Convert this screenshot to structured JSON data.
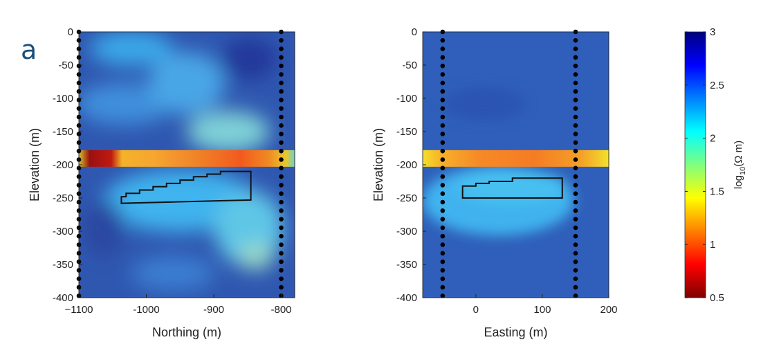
{
  "panel_label": "a",
  "chart_data": [
    {
      "type": "heatmap",
      "xlabel": "Northing (m)",
      "ylabel": "Elevation (m)",
      "xlim": [
        -1100,
        -780
      ],
      "ylim": [
        -400,
        0
      ],
      "x_ticks": [
        -1100,
        -1000,
        -900,
        -800
      ],
      "x_tick_labels": [
        "−1100",
        "-1000",
        "-900",
        "-800"
      ],
      "y_ticks": [
        0,
        -50,
        -100,
        -150,
        -200,
        -250,
        -300,
        -350,
        -400
      ],
      "y_tick_labels": [
        "0",
        "-50",
        "-100",
        "-150",
        "-200",
        "-250",
        "-300",
        "-350",
        "-400"
      ],
      "background_log10_ohm_m": 2.55,
      "band": {
        "elevation_top": -178,
        "elevation_bottom": -203,
        "log10_ohm_m": 1.25
      },
      "borehole_lines": [
        -1100,
        -800
      ],
      "target_outline": {
        "x": [
          -1037,
          -1037,
          -1030,
          -1030,
          -1010,
          -1010,
          -990,
          -990,
          -970,
          -970,
          -950,
          -950,
          -930,
          -930,
          -910,
          -910,
          -890,
          -890,
          -845,
          -845,
          -1037
        ],
        "y": [
          -258,
          -248,
          -248,
          -243,
          -243,
          -238,
          -238,
          -233,
          -233,
          -228,
          -228,
          -223,
          -223,
          -218,
          -218,
          -214,
          -214,
          -210,
          -210,
          -253,
          -258
        ]
      }
    },
    {
      "type": "heatmap",
      "xlabel": "Easting (m)",
      "ylabel": "Elevation (m)",
      "xlim": [
        -80,
        200
      ],
      "ylim": [
        -400,
        0
      ],
      "x_ticks": [
        0,
        100,
        200
      ],
      "x_tick_labels": [
        "0",
        "100",
        "200"
      ],
      "y_ticks": [
        0,
        -50,
        -100,
        -150,
        -200,
        -250,
        -300,
        -350,
        -400
      ],
      "y_tick_labels": [
        "0",
        "-50",
        "-100",
        "-150",
        "-200",
        "-250",
        "-300",
        "-350",
        "-400"
      ],
      "background_log10_ohm_m": 2.7,
      "band": {
        "elevation_top": -178,
        "elevation_bottom": -203,
        "log10_ohm_m": 1.3
      },
      "borehole_lines": [
        -50,
        150
      ],
      "target_outline": {
        "x": [
          -20,
          -20,
          0,
          0,
          20,
          20,
          55,
          55,
          130,
          130,
          -20
        ],
        "y": [
          -250,
          -232,
          -232,
          -228,
          -228,
          -225,
          -225,
          -220,
          -220,
          -250,
          -250
        ]
      }
    }
  ],
  "colorbar": {
    "label_base": "log",
    "label_sub": "10",
    "label_rest": "(Ω m)",
    "range": [
      0.5,
      3
    ],
    "ticks": [
      3,
      2.5,
      2,
      1.5,
      1,
      0.5
    ],
    "tick_labels": [
      "3",
      "2.5",
      "2",
      "1.5",
      "1",
      "0.5"
    ],
    "colormap": "jet"
  }
}
